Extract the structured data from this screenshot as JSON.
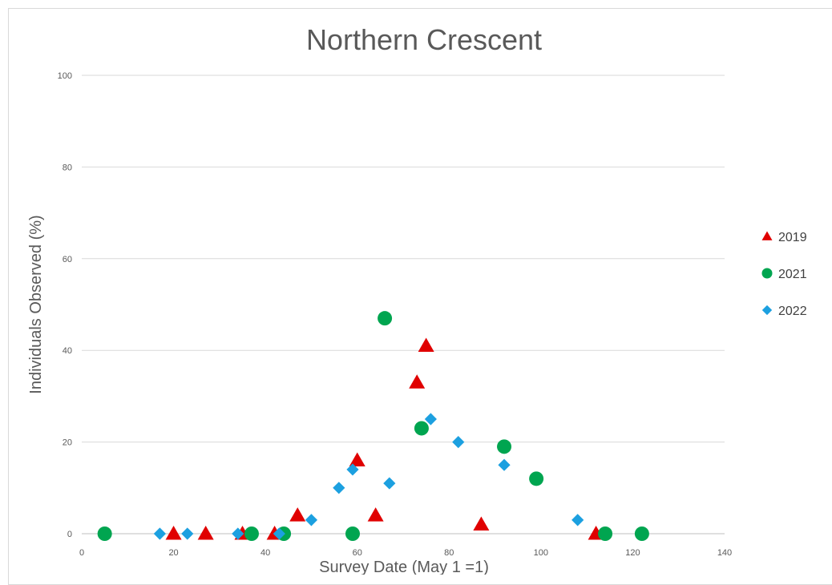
{
  "chart_data": {
    "type": "scatter",
    "title": "Northern Crescent",
    "xlabel": "Survey Date (May 1 =1)",
    "ylabel": "Individuals Observed (%)",
    "xlim": [
      0,
      140
    ],
    "ylim": [
      0,
      100
    ],
    "x_ticks": [
      0,
      20,
      40,
      60,
      80,
      100,
      120,
      140
    ],
    "y_ticks": [
      0,
      20,
      40,
      60,
      80,
      100
    ],
    "grid": "horizontal",
    "legend_position": "right",
    "series": [
      {
        "name": "2019",
        "marker": "triangle",
        "color": "#e00000",
        "x": [
          20,
          27,
          35,
          42,
          47,
          60,
          64,
          73,
          75,
          87,
          112
        ],
        "y": [
          0,
          0,
          0,
          0,
          4,
          16,
          4,
          33,
          41,
          2,
          0
        ]
      },
      {
        "name": "2021",
        "marker": "circle",
        "color": "#00a550",
        "x": [
          5,
          37,
          44,
          59,
          66,
          74,
          92,
          99,
          114,
          122
        ],
        "y": [
          0,
          0,
          0,
          0,
          47,
          23,
          19,
          12,
          0,
          0
        ]
      },
      {
        "name": "2022",
        "marker": "diamond",
        "color": "#1ca0e0",
        "x": [
          17,
          23,
          34,
          43,
          50,
          56,
          59,
          67,
          76,
          82,
          92,
          108
        ],
        "y": [
          0,
          0,
          0,
          0,
          3,
          10,
          14,
          11,
          25,
          20,
          15,
          3
        ]
      }
    ]
  }
}
